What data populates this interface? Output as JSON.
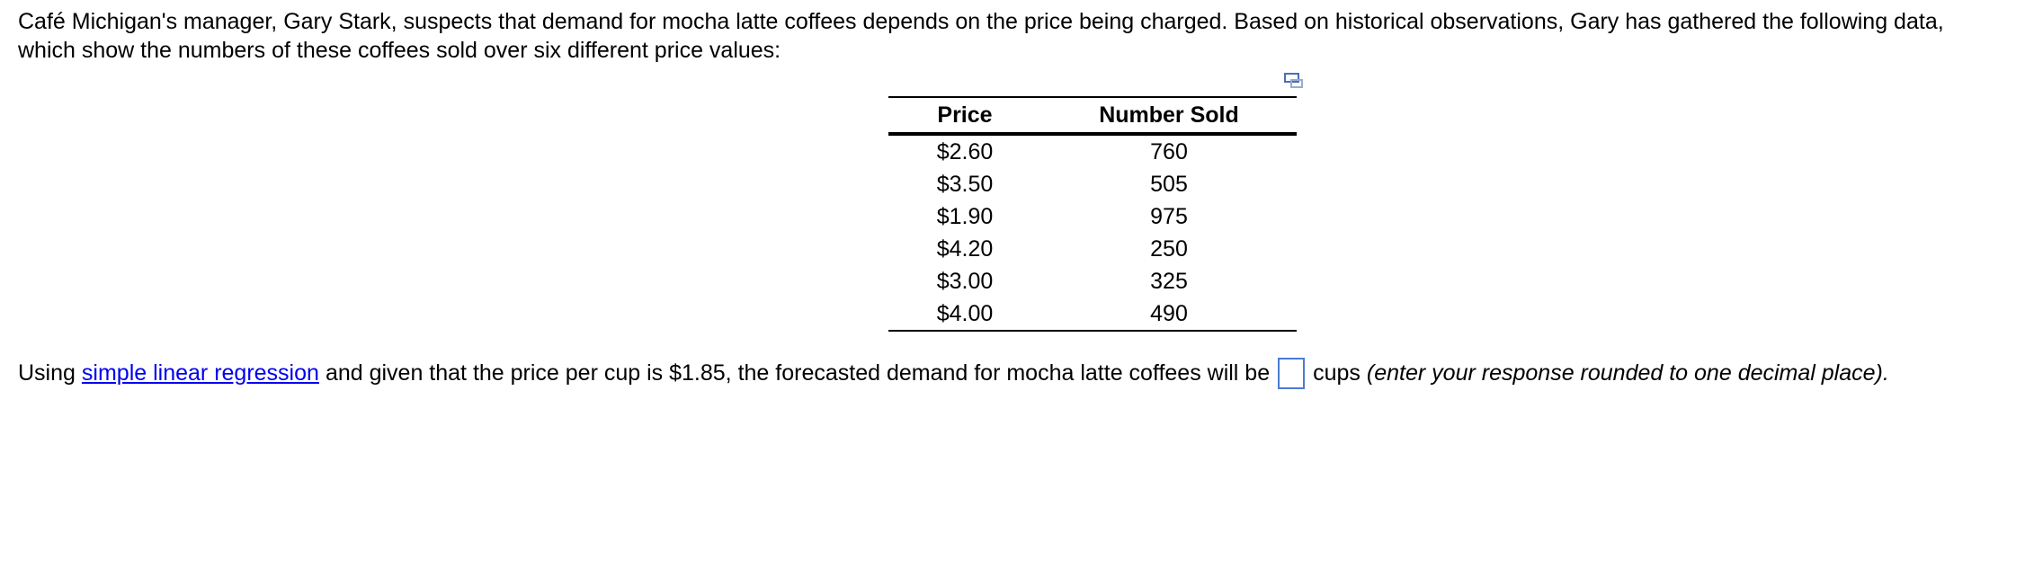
{
  "intro": {
    "lines": [
      "Café Michigan's manager, Gary Stark, suspects that demand for mocha latte coffees depends on the price being charged.  Based on historical observations, Gary has gathered the following data,",
      "which show the numbers of these coffees sold over six different price values:"
    ]
  },
  "table": {
    "headers": [
      "Price",
      "Number Sold"
    ],
    "rows": [
      [
        "$2.60",
        "760"
      ],
      [
        "$3.50",
        "505"
      ],
      [
        "$1.90",
        "975"
      ],
      [
        "$4.20",
        "250"
      ],
      [
        "$3.00",
        "325"
      ],
      [
        "$4.00",
        "490"
      ]
    ]
  },
  "question": {
    "before": "Using",
    "link": "simple linear regression",
    "middle": "and given that the price per cup is $1.85, the forecasted demand for mocha latte coffees will be",
    "unit": "cups",
    "hint": "(enter your response rounded to one decimal place)."
  }
}
